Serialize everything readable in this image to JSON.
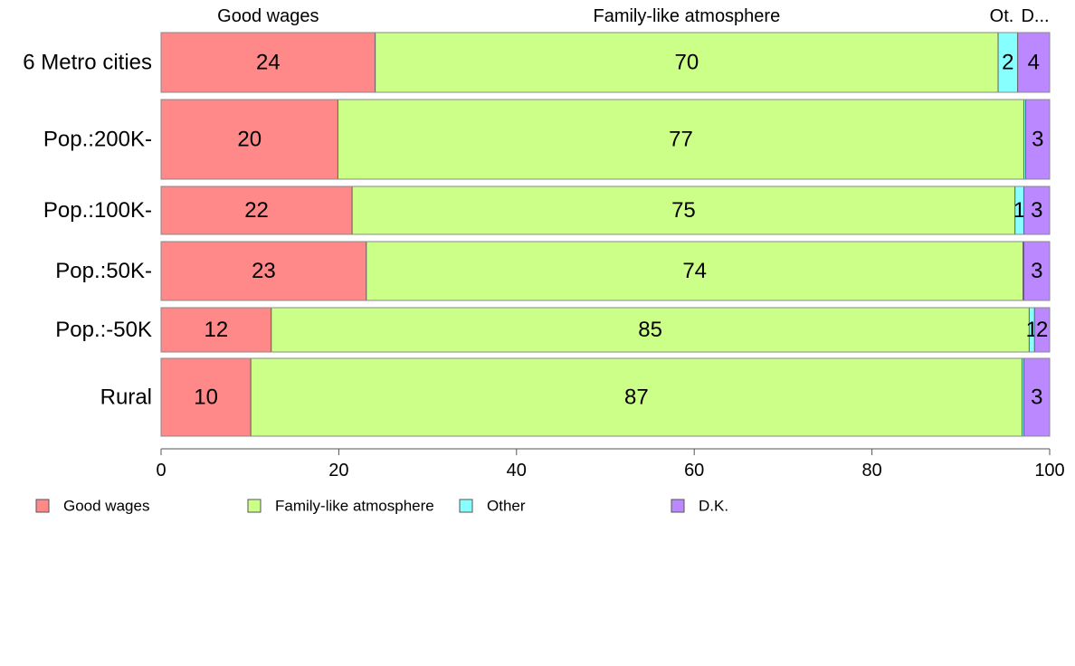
{
  "chart_data": {
    "type": "bar",
    "orientation": "horizontal",
    "stacked": true,
    "categories": [
      "6 Metro cities",
      "Pop.:200K-",
      "Pop.:100K-",
      "Pop.:50K-",
      "Pop.:-50K",
      "Rural"
    ],
    "series": [
      {
        "name": "Good wages",
        "color": "#ff8888",
        "values": [
          24.1,
          19.9,
          21.5,
          23.1,
          12.4,
          10.1
        ]
      },
      {
        "name": "Family-like atmosphere",
        "color": "#ccff88",
        "values": [
          70.1,
          77.2,
          74.6,
          73.9,
          85.3,
          86.8
        ]
      },
      {
        "name": "Other",
        "color": "#88ffff",
        "values": [
          2.2,
          0.2,
          1.0,
          0.1,
          0.6,
          0.2
        ]
      },
      {
        "name": "D.K.",
        "color": "#bb88ff",
        "values": [
          3.6,
          2.7,
          2.9,
          2.9,
          1.7,
          2.9
        ]
      }
    ],
    "data_labels": [
      [
        "24",
        "70",
        "2",
        "4"
      ],
      [
        "20",
        "77",
        "",
        "3"
      ],
      [
        "22",
        "75",
        "1",
        "3"
      ],
      [
        "23",
        "74",
        "",
        "3"
      ],
      [
        "12",
        "85",
        "1",
        "2"
      ],
      [
        "10",
        "87",
        "",
        "3"
      ]
    ],
    "top_labels": [
      "Good wages",
      "Family-like atmosphere",
      "Ot.",
      "D..."
    ],
    "xlim": [
      0,
      100
    ],
    "xticks": [
      "0",
      "20",
      "40",
      "60",
      "80",
      "100"
    ],
    "title": "",
    "xlabel": "",
    "ylabel": "",
    "grid": false,
    "legend_position": "bottom-left"
  }
}
